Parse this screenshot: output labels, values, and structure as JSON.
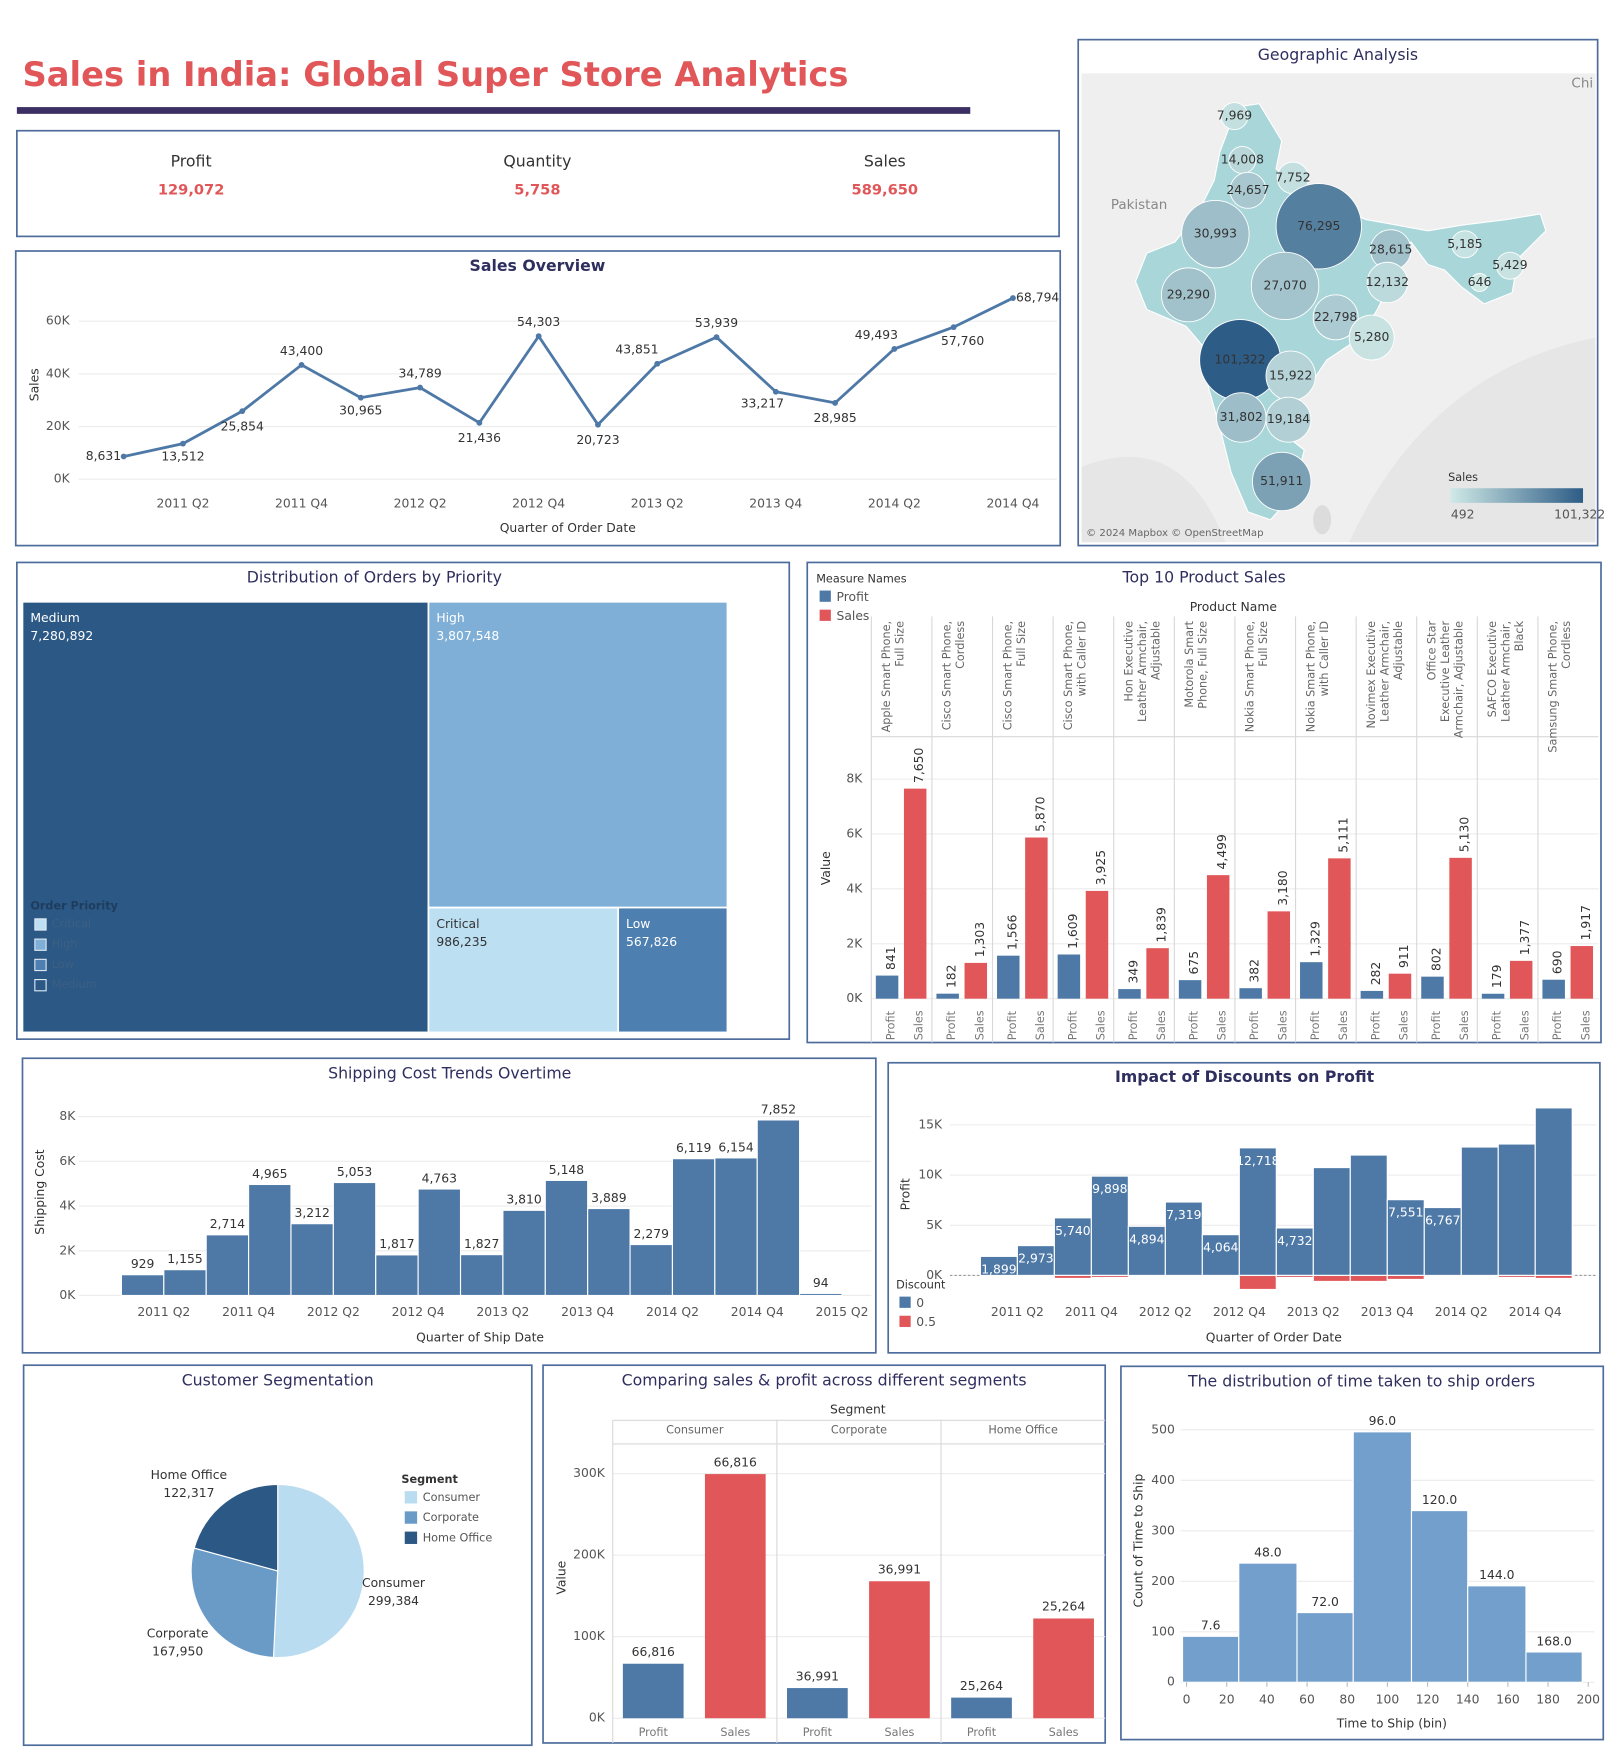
{
  "title": "Sales in India: Global Super Store Analytics",
  "kpis": [
    {
      "name": "Profit",
      "value": "129,072"
    },
    {
      "name": "Quantity",
      "value": "5,758"
    },
    {
      "name": "Sales",
      "value": "589,650"
    }
  ],
  "chart_data": [
    {
      "type": "line",
      "title": "Sales Overview",
      "categories": [
        null,
        "2011 Q2",
        null,
        "2011 Q4",
        null,
        "2012 Q2",
        null,
        "2012 Q4",
        null,
        "2013 Q2",
        null,
        "2013 Q4",
        null,
        "2014 Q2",
        null,
        "2014 Q4"
      ],
      "values": [
        8631,
        13512,
        25854,
        43400,
        30965,
        34789,
        21436,
        54303,
        20723,
        43851,
        53939,
        33217,
        28985,
        49493,
        57760,
        68794
      ],
      "value_labels": [
        "8,631",
        "13,512",
        "25,854",
        "43,400",
        "30,965",
        "34,789",
        "21,436",
        "54,303",
        "20,723",
        "43,851",
        "53,939",
        "33,217",
        "28,985",
        "49,493",
        "57,760",
        "68,794"
      ],
      "color": "#4e79a7",
      "ylim": [
        -3000,
        73000
      ],
      "yticks": [
        {
          "value": 0,
          "label": "0K"
        },
        {
          "value": 20000,
          "label": "20K"
        },
        {
          "value": 40000,
          "label": "40K"
        },
        {
          "value": 60000,
          "label": "60K"
        }
      ],
      "ylabel": "Sales",
      "xlabel": "Quarter of Order Date",
      "grid": true
    },
    {
      "type": "map",
      "title": "Geographic Analysis",
      "values": [
        7969,
        14008,
        7752,
        24657,
        76295,
        30993,
        28615,
        5185,
        5429,
        646,
        12132,
        27070,
        29290,
        22798,
        5280,
        101322,
        15922,
        31802,
        19184,
        51911
      ],
      "value_labels": [
        "7,969",
        "14,008",
        "7,752",
        "24,657",
        "76,295",
        "30,993",
        "28,615",
        "5,185",
        "5,429",
        "646",
        "12,132",
        "27,070",
        "29,290",
        "22,798",
        "5,280",
        "101,322",
        "15,922",
        "31,802",
        "19,184",
        "51,911"
      ],
      "legend_title": "Sales",
      "color_range": [
        492,
        101322
      ],
      "color_range_labels": [
        "492",
        "101,322"
      ],
      "colors": [
        "#cfe9e6",
        "#2d5c86"
      ],
      "annotations": [
        "Pakistan",
        "Chi",
        "© 2024 Mapbox © OpenStreetMap"
      ]
    },
    {
      "type": "treemap",
      "title": "Distribution of Orders by Priority",
      "categories": [
        "Medium",
        "High",
        "Critical",
        "Low"
      ],
      "values": [
        7280892,
        3807548,
        986235,
        567826
      ],
      "value_labels": [
        "7,280,892",
        "3,807,548",
        "986,235",
        "567,826"
      ],
      "colors": [
        "#2b5885",
        "#7fafd6",
        "#bcdff2",
        "#4d7fb0"
      ],
      "legend_title": "Order Priority"
    },
    {
      "type": "bar",
      "title": "Top 10 Product Sales",
      "categories": [
        "Apple Smart Phone, Full Size",
        "Cisco Smart Phone, Cordless",
        "Cisco Smart Phone, Full Size",
        "Cisco Smart Phone, with Caller ID",
        "Hon Executive Leather Armchair, Adjustable",
        "Motorola Smart Phone, Full Size",
        "Nokia Smart Phone, Full Size",
        "Nokia Smart Phone, with Caller ID",
        "Novimex Executive Leather Armchair, Adjustable",
        "Office Star Executive Leather Armchair, Adjustable",
        "SAFCO Executive Leather Armchair, Black",
        "Samsung Smart Phone, Cordless"
      ],
      "series": [
        {
          "name": "Profit",
          "color": "#4e79a7",
          "values": [
            841,
            182,
            1566,
            1609,
            349,
            675,
            382,
            1329,
            282,
            802,
            179,
            690
          ],
          "value_labels": [
            "841",
            "182",
            "1,566",
            "1,609",
            "349",
            "675",
            "382",
            "1,329",
            "282",
            "802",
            "179",
            "690"
          ]
        },
        {
          "name": "Sales",
          "color": "#e15759",
          "values": [
            7650,
            1303,
            5870,
            3925,
            1839,
            4499,
            3180,
            5111,
            911,
            5130,
            1377,
            1917
          ],
          "value_labels": [
            "7,650",
            "1,303",
            "5,870",
            "3,925",
            "1,839",
            "4,499",
            "3,180",
            "5,111",
            "911",
            "5,130",
            "1,377",
            "1,917"
          ]
        }
      ],
      "ylim": [
        0,
        9500
      ],
      "yticks": [
        {
          "value": 0,
          "label": "0K"
        },
        {
          "value": 2000,
          "label": "2K"
        },
        {
          "value": 4000,
          "label": "4K"
        },
        {
          "value": 6000,
          "label": "6K"
        },
        {
          "value": 8000,
          "label": "8K"
        }
      ],
      "ylabel": "Value",
      "xlabel": "Product Name",
      "legend_title": "Measure Names",
      "grid": true
    },
    {
      "type": "bar",
      "title": "Shipping Cost Trends Overtime",
      "values": [
        929,
        1155,
        2714,
        4965,
        3212,
        5053,
        1817,
        4763,
        1827,
        3810,
        5148,
        3889,
        2279,
        6119,
        6154,
        7852,
        94
      ],
      "value_labels": [
        "929",
        "1,155",
        "2,714",
        "4,965",
        "3,212",
        "5,053",
        "1,817",
        "4,763",
        "1,827",
        "3,810",
        "5,148",
        "3,889",
        "2,279",
        "6,119",
        "6,154",
        "7,852",
        "94"
      ],
      "color": "#4e79a7",
      "xticks": [
        "2011 Q2",
        "2011 Q4",
        "2012 Q2",
        "2012 Q4",
        "2013 Q2",
        "2013 Q4",
        "2014 Q2",
        "2014 Q4",
        "2015 Q2"
      ],
      "ylim": [
        0,
        8900
      ],
      "yticks": [
        {
          "value": 0,
          "label": "0K"
        },
        {
          "value": 2000,
          "label": "2K"
        },
        {
          "value": 4000,
          "label": "4K"
        },
        {
          "value": 6000,
          "label": "6K"
        },
        {
          "value": 8000,
          "label": "8K"
        }
      ],
      "ylabel": "Shipping Cost",
      "xlabel": "Quarter of Ship Date",
      "grid": true
    },
    {
      "type": "bar",
      "title": "Impact of Discounts on Profit",
      "series": [
        {
          "name": "0",
          "color": "#4e79a7",
          "values": [
            1899,
            2973,
            5740,
            9898,
            4894,
            7319,
            4064,
            12718,
            4732,
            10750,
            12000,
            7551,
            6767,
            12800,
            13100,
            16700
          ],
          "value_labels": [
            "1,899",
            "2,973",
            "5,740",
            "9,898",
            "4,894",
            "7,319",
            "4,064",
            "12,718",
            "4,732",
            null,
            null,
            "7,551",
            "6,767",
            null,
            null,
            null
          ]
        },
        {
          "name": "0.5",
          "color": "#e15759",
          "values": [
            null,
            null,
            -300,
            -200,
            null,
            null,
            null,
            -1400,
            -200,
            -600,
            -600,
            -400,
            null,
            null,
            -200,
            -300
          ]
        }
      ],
      "xticks": [
        "2011 Q2",
        "2011 Q4",
        "2012 Q2",
        "2012 Q4",
        "2013 Q2",
        "2013 Q4",
        "2014 Q2",
        "2014 Q4"
      ],
      "ylim": [
        -2000,
        17500
      ],
      "yticks": [
        {
          "value": 0,
          "label": "0K"
        },
        {
          "value": 5000,
          "label": "5K"
        },
        {
          "value": 10000,
          "label": "10K"
        },
        {
          "value": 15000,
          "label": "15K"
        }
      ],
      "ylabel": "Profit",
      "xlabel": "Quarter of Order Date",
      "legend_title": "Discount",
      "grid": true
    },
    {
      "type": "pie",
      "title": "Customer Segmentation",
      "categories": [
        "Consumer",
        "Corporate",
        "Home Office"
      ],
      "values": [
        299384,
        167950,
        122317
      ],
      "value_labels": [
        "299,384",
        "167,950",
        "122,317"
      ],
      "colors": [
        "#b9dcf0",
        "#6a9bc7",
        "#2b5885"
      ],
      "legend_title": "Segment"
    },
    {
      "type": "bar",
      "title": "Comparing sales & profit across different segments",
      "categories": [
        "Consumer",
        "Corporate",
        "Home Office"
      ],
      "series": [
        {
          "name": "Profit",
          "color": "#4e79a7",
          "values": [
            66816,
            36991,
            25264
          ],
          "value_labels": [
            "66,816",
            "36,991",
            "25,264"
          ]
        },
        {
          "name": "Sales",
          "color": "#e15759",
          "values": [
            299384,
            167950,
            122317
          ]
        }
      ],
      "ylim": [
        0,
        335000
      ],
      "yticks": [
        {
          "value": 0,
          "label": "0K"
        },
        {
          "value": 100000,
          "label": "100K"
        },
        {
          "value": 200000,
          "label": "200K"
        },
        {
          "value": 300000,
          "label": "300K"
        }
      ],
      "ylabel": "Value",
      "xlabel": "Segment",
      "grid": true
    },
    {
      "type": "histogram",
      "title": "The distribution of time taken to ship orders",
      "bins": [
        -2,
        26,
        55,
        83,
        112,
        140,
        169,
        197
      ],
      "counts": [
        91,
        236,
        138,
        496,
        340,
        191,
        60
      ],
      "bin_labels": [
        "7.6",
        "48.0",
        "72.0",
        "96.0",
        "120.0",
        "144.0",
        "168.0"
      ],
      "color": "#729fcb",
      "xlim": [
        -3,
        203
      ],
      "xticks": [
        0,
        20,
        40,
        60,
        80,
        100,
        120,
        140,
        160,
        180,
        200
      ],
      "ylim": [
        0,
        530
      ],
      "yticks": [
        0,
        100,
        200,
        300,
        400,
        500
      ],
      "ylabel": "Count of Time to Ship",
      "xlabel": "Time to Ship (bin)",
      "grid": true
    }
  ]
}
